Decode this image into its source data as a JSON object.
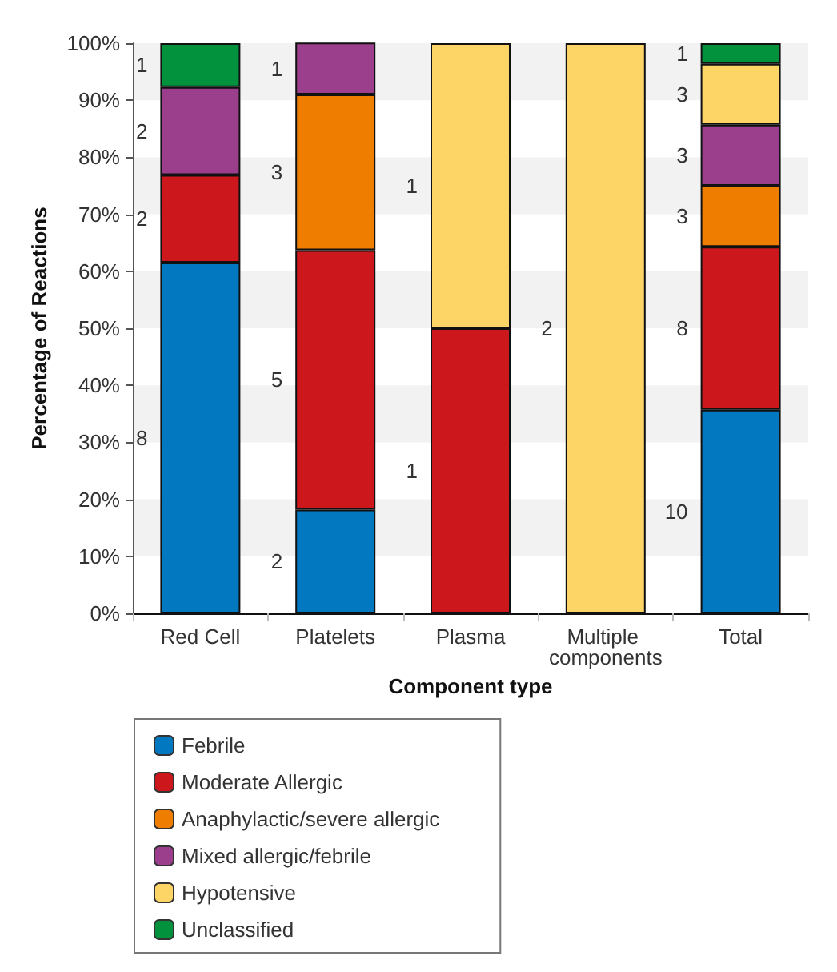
{
  "chart_data": {
    "type": "bar",
    "stacked": true,
    "xlabel": "Component type",
    "ylabel": "Percentage of Reactions",
    "categories": [
      "Red Cell",
      "Platelets",
      "Plasma",
      "Multiple components",
      "Total"
    ],
    "ylim": [
      0,
      100
    ],
    "yticks": [
      {
        "value": 0,
        "label": "0%"
      },
      {
        "value": 10,
        "label": "10%"
      },
      {
        "value": 20,
        "label": "20%"
      },
      {
        "value": 30,
        "label": "30%"
      },
      {
        "value": 40,
        "label": "40%"
      },
      {
        "value": 50,
        "label": "50%"
      },
      {
        "value": 60,
        "label": "60%"
      },
      {
        "value": 70,
        "label": "70%"
      },
      {
        "value": 80,
        "label": "80%"
      },
      {
        "value": 90,
        "label": "90%"
      },
      {
        "value": 100,
        "label": "100%"
      }
    ],
    "legend": "bottom left",
    "bands": [
      {
        "axis": "y",
        "from": 10,
        "to": 20,
        "color": "#f2f2f2"
      },
      {
        "axis": "y",
        "from": 30,
        "to": 40,
        "color": "#f2f2f2"
      },
      {
        "axis": "y",
        "from": 50,
        "to": 60,
        "color": "#f2f2f2"
      },
      {
        "axis": "y",
        "from": 70,
        "to": 80,
        "color": "#f2f2f2"
      },
      {
        "axis": "y",
        "from": 90,
        "to": 100,
        "color": "#f2f2f2"
      }
    ],
    "series": [
      {
        "name": "Febrile",
        "color": "#0278c1",
        "values": [
          61.5,
          18.2,
          null,
          null,
          35.7
        ]
      },
      {
        "name": "Moderate Allergic",
        "color": "#cc181c",
        "values": [
          15.4,
          45.5,
          50,
          null,
          28.6
        ]
      },
      {
        "name": "Anaphylactic/severe allergic",
        "color": "#ef7d00",
        "values": [
          null,
          27.3,
          null,
          null,
          10.7
        ]
      },
      {
        "name": "Mixed allergic/febrile",
        "color": "#9b3f8c",
        "values": [
          15.4,
          9.1,
          null,
          null,
          10.7
        ]
      },
      {
        "name": "Hypotensive",
        "color": "#fdd466",
        "values": [
          null,
          null,
          50,
          100,
          10.7
        ]
      },
      {
        "name": "Unclassified",
        "color": "#02923e",
        "values": [
          7.7,
          null,
          null,
          null,
          3.6
        ]
      }
    ],
    "annotations": [
      "8",
      "2",
      "2",
      "1",
      "2",
      "5",
      "3",
      "1",
      "1",
      "1",
      "2",
      "10",
      "8",
      "3",
      "3",
      "3",
      "1"
    ]
  }
}
